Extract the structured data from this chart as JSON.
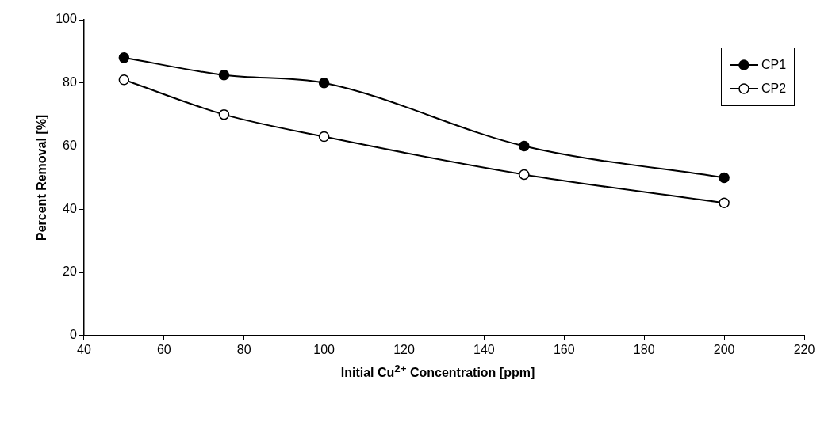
{
  "chart_data": {
    "type": "line",
    "xlabel": "Initial Cu$^{2+}$ Concentration [ppm]",
    "ylabel": "Percent Removal [%]",
    "x": [
      50,
      75,
      100,
      150,
      200
    ],
    "series": [
      {
        "name": "CP1",
        "color": "#000000",
        "values": [
          88,
          82.5,
          80,
          60,
          50
        ]
      },
      {
        "name": "CP2",
        "color": "#000000",
        "values": [
          81,
          70,
          63,
          51,
          42
        ]
      }
    ],
    "xlim": [
      40,
      220
    ],
    "xticks": [
      40,
      60,
      80,
      100,
      120,
      140,
      160,
      180,
      200,
      220
    ],
    "ylim": [
      0,
      100
    ],
    "yticks": [
      0,
      20,
      40,
      60,
      80,
      100
    ],
    "grid": false,
    "legend": "top right",
    "marker": "circle",
    "line_style": "solid"
  }
}
